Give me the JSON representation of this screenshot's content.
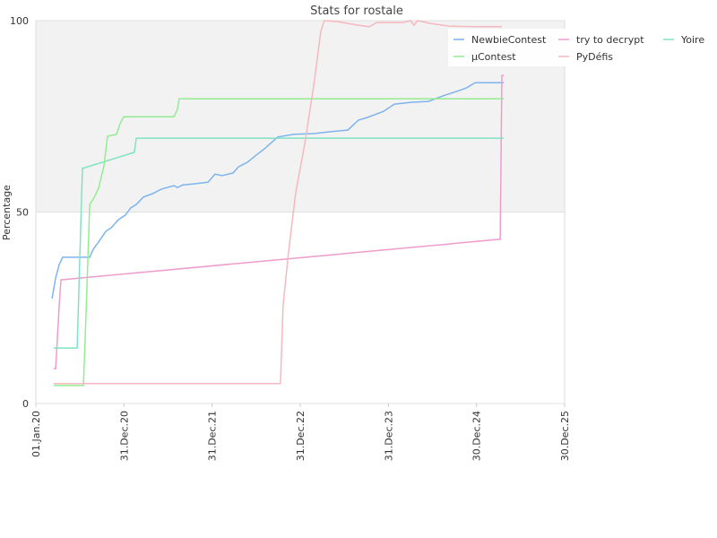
{
  "chart_data": {
    "type": "line",
    "title": "Stats for rostale",
    "y_label": "Percentage",
    "xlim": [
      "2020-01-01",
      "2025-12-30"
    ],
    "xticks": [
      {
        "value": "2020-01-01",
        "label": "01.Jan.20"
      },
      {
        "value": "2020-12-31",
        "label": "31.Dec.20"
      },
      {
        "value": "2021-12-31",
        "label": "31.Dec.21"
      },
      {
        "value": "2022-12-31",
        "label": "31.Dec.22"
      },
      {
        "value": "2023-12-31",
        "label": "31.Dec.23"
      },
      {
        "value": "2024-12-30",
        "label": "30.Dec.24"
      },
      {
        "value": "2025-12-30",
        "label": "30.Dec.25"
      }
    ],
    "ylim": [
      0,
      100
    ],
    "yticks": [
      0,
      50,
      100
    ],
    "grid": true,
    "legend": "upper right",
    "series": [
      {
        "name": "NewbieContest",
        "color": "#7db4ee",
        "x": [
          "2020-03-08",
          "2020-03-23",
          "2020-04-07",
          "2020-04-21",
          "2020-08-11",
          "2020-08-26",
          "2020-09-17",
          "2020-10-17",
          "2020-11-08",
          "2020-12-08",
          "2021-01-06",
          "2021-01-28",
          "2021-02-20",
          "2021-03-21",
          "2021-04-28",
          "2021-06-04",
          "2021-07-26",
          "2021-08-09",
          "2021-09-01",
          "2021-10-23",
          "2021-12-14",
          "2022-01-12",
          "2022-02-11",
          "2022-03-28",
          "2022-04-19",
          "2022-05-26",
          "2022-07-02",
          "2022-08-08",
          "2022-09-29",
          "2022-12-05",
          "2023-02-25",
          "2023-05-10",
          "2023-07-16",
          "2023-08-29",
          "2023-10-05",
          "2023-12-11",
          "2024-01-25",
          "2024-04-08",
          "2024-06-14",
          "2024-08-12",
          "2024-10-18",
          "2024-11-17",
          "2024-12-24",
          "2025-04-22"
        ],
        "values": [
          27.4,
          32.8,
          36.3,
          38.2,
          38.2,
          40.3,
          42.2,
          45.0,
          45.9,
          48.0,
          49.2,
          51.1,
          52.0,
          53.9,
          54.8,
          56.0,
          56.9,
          56.4,
          57.1,
          57.4,
          57.8,
          59.9,
          59.5,
          60.2,
          61.8,
          63.0,
          64.9,
          66.7,
          69.6,
          70.3,
          70.5,
          71.0,
          71.4,
          74.0,
          74.7,
          76.3,
          78.2,
          78.7,
          78.9,
          80.3,
          81.7,
          82.4,
          83.8,
          83.8
        ]
      },
      {
        "name": "try to decrypt",
        "color": "#ee9ccc",
        "x": [
          "2020-03-15",
          "2020-03-23",
          "2020-04-07",
          "2020-04-14",
          "2025-04-07",
          "2025-04-14",
          "2025-04-22"
        ],
        "values": [
          9.1,
          9.1,
          25.8,
          32.3,
          42.9,
          85.7,
          85.7
        ]
      },
      {
        "name": "Yoire",
        "color": "#7fe3c3",
        "x": [
          "2020-03-15",
          "2020-06-20",
          "2020-07-12",
          "2021-02-12",
          "2021-02-20",
          "2025-04-22"
        ],
        "values": [
          14.5,
          14.5,
          61.4,
          65.6,
          69.3,
          69.3
        ]
      },
      {
        "name": "µContest",
        "color": "#93ec93",
        "x": [
          "2020-03-15",
          "2020-07-16",
          "2020-07-27",
          "2020-08-11",
          "2020-08-26",
          "2020-09-17",
          "2020-10-09",
          "2020-10-24",
          "2020-11-30",
          "2020-12-15",
          "2020-12-30",
          "2021-07-26",
          "2021-08-09",
          "2021-08-17",
          "2025-04-22"
        ],
        "values": [
          4.7,
          4.7,
          23.4,
          52.0,
          53.4,
          56.2,
          62.1,
          69.8,
          70.3,
          73.1,
          74.9,
          74.9,
          76.8,
          79.6,
          79.6
        ]
      },
      {
        "name": "PyDéfis",
        "color": "#f6b8c0",
        "x": [
          "2020-03-15",
          "2022-10-10",
          "2022-10-21",
          "2022-11-13",
          "2022-12-12",
          "2023-01-19",
          "2023-02-25",
          "2023-03-26",
          "2023-04-10",
          "2023-05-29",
          "2023-08-29",
          "2023-10-13",
          "2023-11-12",
          "2024-03-02",
          "2024-04-01",
          "2024-04-15",
          "2024-04-30",
          "2024-06-21",
          "2024-09-04",
          "2024-12-24",
          "2025-04-14"
        ],
        "values": [
          5.2,
          5.2,
          25.8,
          39.8,
          55.0,
          67.9,
          83.1,
          97.2,
          100,
          99.8,
          98.8,
          98.4,
          99.5,
          99.5,
          100,
          98.8,
          100,
          99.3,
          98.6,
          98.4,
          98.4
        ]
      }
    ]
  }
}
